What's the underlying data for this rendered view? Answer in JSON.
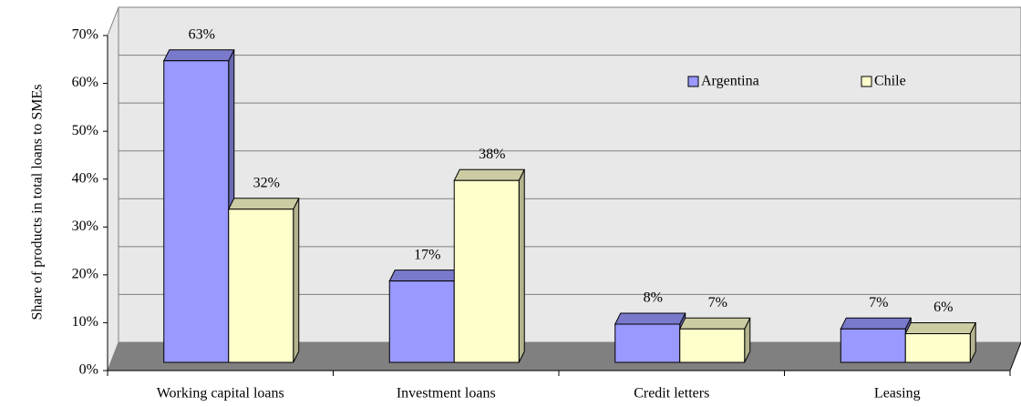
{
  "chart_data": {
    "type": "bar3d",
    "y_label": "Share of products in total loans to SMEs",
    "categories": [
      "Working capital loans",
      "Investment loans",
      "Credit letters",
      "Leasing"
    ],
    "series": [
      {
        "name": "Argentina",
        "color": "#9999ff",
        "values": [
          63,
          17,
          8,
          7
        ],
        "value_labels": [
          "63%",
          "17%",
          "8%",
          "7%"
        ]
      },
      {
        "name": "Chile",
        "color": "#ffffcc",
        "values": [
          32,
          38,
          7,
          6
        ],
        "value_labels": [
          "32%",
          "38%",
          "7%",
          "6%"
        ]
      }
    ],
    "ylim": [
      0,
      70
    ],
    "yticks": [
      {
        "value": 0,
        "label": "0%"
      },
      {
        "value": 10,
        "label": "10%"
      },
      {
        "value": 20,
        "label": "20%"
      },
      {
        "value": 30,
        "label": "30%"
      },
      {
        "value": 40,
        "label": "40%"
      },
      {
        "value": 50,
        "label": "50%"
      },
      {
        "value": 60,
        "label": "60%"
      },
      {
        "value": 70,
        "label": "70%"
      }
    ],
    "grid": true
  }
}
